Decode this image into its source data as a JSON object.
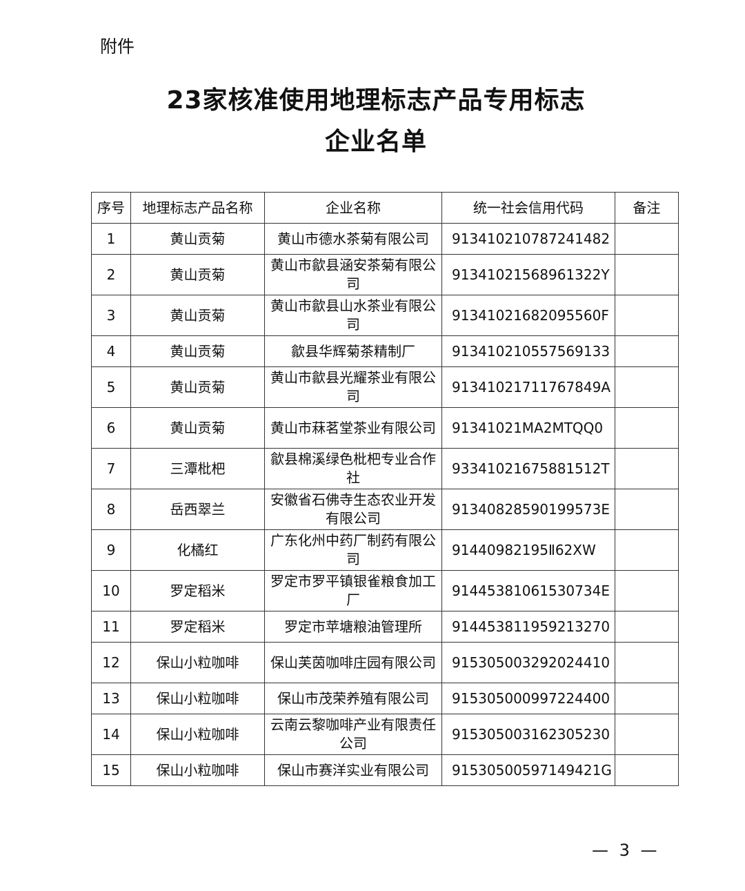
{
  "attachment_label": "附件",
  "title_line1": "23家核准使用地理标志产品专用标志",
  "title_line2": "企业名单",
  "table": {
    "headers": [
      "序号",
      "地理标志产品名称",
      "企业名称",
      "统一社会信用代码",
      "备注"
    ],
    "rows": [
      {
        "no": "1",
        "product": "黄山贡菊",
        "company": "黄山市德水茶菊有限公司",
        "code": "913410210787241482",
        "note": ""
      },
      {
        "no": "2",
        "product": "黄山贡菊",
        "company": "黄山市歙县涵安茶菊有限公司",
        "code": "91341021568961322Y",
        "note": ""
      },
      {
        "no": "3",
        "product": "黄山贡菊",
        "company": "黄山市歙县山水茶业有限公司",
        "code": "91341021682095560F",
        "note": ""
      },
      {
        "no": "4",
        "product": "黄山贡菊",
        "company": "歙县华辉菊茶精制厂",
        "code": "913410210557569133",
        "note": ""
      },
      {
        "no": "5",
        "product": "黄山贡菊",
        "company": "黄山市歙县光耀茶业有限公司",
        "code": "91341021711767849A",
        "note": ""
      },
      {
        "no": "6",
        "product": "黄山贡菊",
        "company": "黄山市菻茗堂茶业有限公司",
        "code": "91341021MA2MTQQ0",
        "note": ""
      },
      {
        "no": "7",
        "product": "三潭枇杷",
        "company": "歙县棉溪绿色枇杷专业合作社",
        "code": "93341021675881512T",
        "note": ""
      },
      {
        "no": "8",
        "product": "岳西翠兰",
        "company": "安徽省石佛寺生态农业开发有限公司",
        "code": "91340828590199573E",
        "note": ""
      },
      {
        "no": "9",
        "product": "化橘红",
        "company": "广东化州中药厂制药有限公司",
        "code": "91440982195Ⅱ62XW",
        "note": ""
      },
      {
        "no": "10",
        "product": "罗定稻米",
        "company": "罗定市罗平镇银雀粮食加工厂",
        "code": "91445381061530734E",
        "note": ""
      },
      {
        "no": "11",
        "product": "罗定稻米",
        "company": "罗定市苹塘粮油管理所",
        "code": "914453811959213270",
        "note": ""
      },
      {
        "no": "12",
        "product": "保山小粒咖啡",
        "company": "保山芙茵咖啡庄园有限公司",
        "code": "915305003292024410",
        "note": ""
      },
      {
        "no": "13",
        "product": "保山小粒咖啡",
        "company": "保山市茂荣养殖有限公司",
        "code": "915305000997224400",
        "note": ""
      },
      {
        "no": "14",
        "product": "保山小粒咖啡",
        "company": "云南云黎咖啡产业有限责任公司",
        "code": "915305003162305230",
        "note": ""
      },
      {
        "no": "15",
        "product": "保山小粒咖啡",
        "company": "保山市赛洋实业有限公司",
        "code": "91530500597149421G",
        "note": ""
      }
    ]
  },
  "page_number": "— 3 —"
}
